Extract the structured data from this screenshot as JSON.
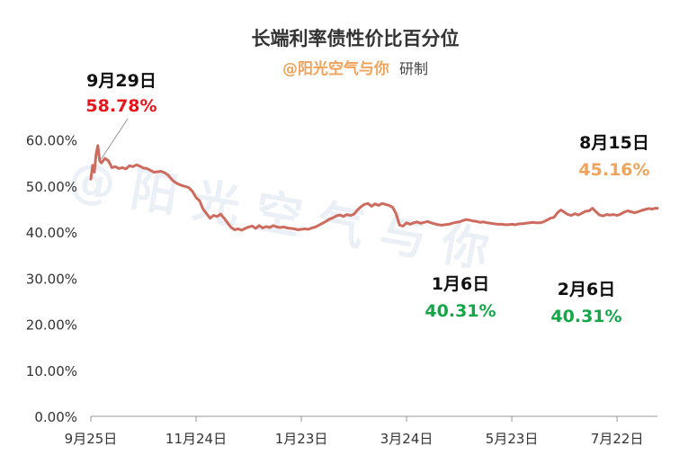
{
  "header": {
    "title": "长端利率债性价比百分位",
    "brand": "@阳光空气与你",
    "brand_suffix": "研制"
  },
  "watermark": "@ 阳 光 空 气 与 你",
  "colors": {
    "line": "#cd6b5e",
    "red": "#e8141c",
    "orange": "#f0a35a",
    "green": "#16a64a",
    "axis": "#999999"
  },
  "chart_data": {
    "type": "line",
    "title": "长端利率债性价比百分位",
    "y_ticks": [
      "60.00%",
      "50.00%",
      "40.00%",
      "30.00%",
      "20.00%",
      "10.00%",
      "0.00%"
    ],
    "y_tick_values": [
      60,
      50,
      40,
      30,
      20,
      10,
      0
    ],
    "ylim": [
      0,
      65
    ],
    "x_ticks": [
      "9月25日",
      "11月24日",
      "1月23日",
      "3月24日",
      "5月23日",
      "7月22日"
    ],
    "x_tick_days": [
      0,
      60,
      120,
      180,
      240,
      300
    ],
    "x_range_days": [
      0,
      323
    ],
    "grid": false,
    "legend": "none",
    "series": [
      {
        "days": [
          0,
          1,
          2,
          3,
          4,
          5,
          6,
          7,
          8,
          10,
          12,
          14,
          16,
          18,
          20,
          22,
          24,
          26,
          28,
          30,
          32,
          34,
          36,
          38,
          40,
          42,
          44,
          46,
          48,
          50,
          52,
          54,
          56,
          58,
          60,
          62,
          64,
          66,
          68,
          70,
          72,
          74,
          76,
          78,
          80,
          82,
          84,
          86,
          88,
          90,
          92,
          94,
          96,
          98,
          100,
          102,
          104,
          106,
          108,
          110,
          112,
          114,
          116,
          118,
          120,
          122,
          124,
          126,
          128,
          130,
          132,
          134,
          136,
          138,
          140,
          142,
          144,
          146,
          148,
          150,
          152,
          154,
          156,
          158,
          160,
          162,
          164,
          166,
          168,
          170,
          172,
          174,
          176,
          178,
          180,
          182,
          184,
          186,
          188,
          190,
          192,
          194,
          196,
          198,
          200,
          202,
          204,
          206,
          208,
          210,
          212,
          214,
          216,
          218,
          220,
          222,
          224,
          226,
          228,
          230,
          232,
          234,
          236,
          238,
          240,
          242,
          244,
          246,
          248,
          250,
          252,
          254,
          256,
          258,
          260,
          262,
          264,
          266,
          268,
          270,
          272,
          274,
          276,
          278,
          280,
          282,
          284,
          286,
          288,
          290,
          292,
          294,
          296,
          298,
          300,
          302,
          304,
          306,
          308,
          310,
          312,
          314,
          316,
          318,
          320,
          322,
          323
        ],
        "values": [
          51.5,
          54.5,
          53.0,
          57.0,
          58.78,
          55.5,
          55.0,
          55.5,
          56.0,
          55.5,
          54.0,
          54.2,
          53.8,
          54.0,
          53.7,
          54.4,
          54.2,
          54.6,
          54.3,
          53.9,
          53.8,
          53.4,
          53.0,
          53.1,
          53.2,
          52.9,
          52.4,
          51.5,
          50.8,
          50.4,
          50.1,
          49.9,
          49.6,
          48.8,
          47.5,
          46.8,
          45.0,
          44.0,
          43.0,
          43.6,
          43.4,
          43.9,
          43.0,
          42.0,
          41.0,
          40.5,
          40.7,
          40.4,
          40.8,
          41.1,
          41.3,
          40.8,
          41.4,
          40.9,
          41.2,
          41.0,
          41.4,
          41.1,
          41.0,
          41.1,
          40.9,
          40.8,
          40.7,
          40.5,
          40.6,
          40.7,
          40.6,
          40.9,
          41.1,
          41.5,
          41.9,
          42.3,
          42.8,
          43.1,
          43.5,
          43.7,
          43.4,
          43.8,
          43.6,
          43.9,
          44.8,
          45.5,
          46.0,
          46.2,
          45.6,
          46.1,
          45.8,
          46.2,
          46.0,
          45.8,
          45.4,
          44.0,
          41.5,
          41.3,
          42.0,
          41.7,
          42.0,
          42.2,
          41.9,
          42.1,
          42.3,
          42.0,
          41.8,
          41.6,
          41.5,
          41.6,
          41.7,
          41.9,
          42.1,
          42.2,
          42.5,
          42.7,
          42.6,
          42.4,
          42.3,
          42.1,
          42.2,
          42.0,
          41.9,
          41.8,
          41.7,
          41.7,
          41.6,
          41.6,
          41.7,
          41.6,
          41.8,
          41.8,
          41.9,
          42.0,
          42.1,
          42.0,
          42.0,
          42.2,
          42.6,
          43.0,
          43.2,
          44.2,
          44.8,
          44.3,
          43.8,
          43.6,
          44.0,
          43.7,
          44.1,
          44.5,
          44.6,
          45.16,
          44.4,
          43.7,
          43.5,
          43.8,
          43.7,
          43.8,
          43.6,
          43.9,
          44.3,
          44.6,
          44.4,
          44.2,
          44.4,
          44.7,
          44.9,
          45.1,
          45.0,
          45.16,
          45.16
        ]
      }
    ],
    "annotations": [
      {
        "label": "9月29日",
        "value": "58.78%",
        "day": 4,
        "y": 58.78,
        "color": "red",
        "leader": true
      },
      {
        "label": "1月6日",
        "value": "40.31%",
        "color": "green"
      },
      {
        "label": "2月6日",
        "value": "40.31%",
        "color": "green"
      },
      {
        "label": "8月15日",
        "value": "45.16%",
        "color": "orange"
      }
    ]
  }
}
